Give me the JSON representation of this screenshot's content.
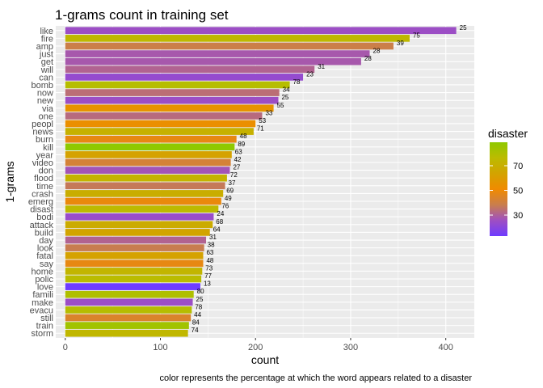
{
  "chart_data": {
    "type": "bar",
    "orientation": "horizontal",
    "title": "1-grams count in training set",
    "xlabel": "count",
    "ylabel": "1-grams",
    "caption": "color represents the percentage at which the word appears related to a disaster",
    "xlim": [
      -10,
      430
    ],
    "x_ticks": [
      0,
      100,
      200,
      300,
      400
    ],
    "grid": true,
    "legend": {
      "title": "disaster",
      "placement": "right",
      "range": [
        13,
        89
      ],
      "ticks": [
        30,
        50,
        70
      ],
      "colors": [
        "#6e3cff",
        "#9f4fc2",
        "#c97e4d",
        "#f08b00",
        "#d3a300",
        "#bcbb00",
        "#8fc900"
      ]
    },
    "categories": [
      "like",
      "fire",
      "amp",
      "just",
      "get",
      "will",
      "can",
      "bomb",
      "now",
      "new",
      "via",
      "one",
      "peopl",
      "news",
      "burn",
      "kill",
      "year",
      "video",
      "don",
      "flood",
      "time",
      "crash",
      "emerg",
      "disast",
      "bodi",
      "attack",
      "build",
      "day",
      "look",
      "fatal",
      "say",
      "home",
      "polic",
      "love",
      "famili",
      "make",
      "evacu",
      "still",
      "train",
      "storm"
    ],
    "values": [
      411,
      362,
      345,
      320,
      311,
      262,
      250,
      236,
      225,
      224,
      219,
      207,
      200,
      198,
      180,
      178,
      175,
      174,
      173,
      170,
      168,
      166,
      164,
      161,
      156,
      155,
      152,
      148,
      146,
      145,
      145,
      144,
      143,
      142,
      135,
      134,
      133,
      132,
      130,
      129
    ],
    "series": [
      {
        "name": "disaster",
        "values": [
          25,
          75,
          39,
          28,
          28,
          31,
          23,
          78,
          34,
          25,
          55,
          33,
          53,
          71,
          48,
          89,
          63,
          42,
          27,
          72,
          37,
          69,
          49,
          76,
          24,
          68,
          64,
          31,
          38,
          63,
          48,
          73,
          77,
          13,
          80,
          25,
          78,
          44,
          84,
          74
        ]
      }
    ]
  }
}
